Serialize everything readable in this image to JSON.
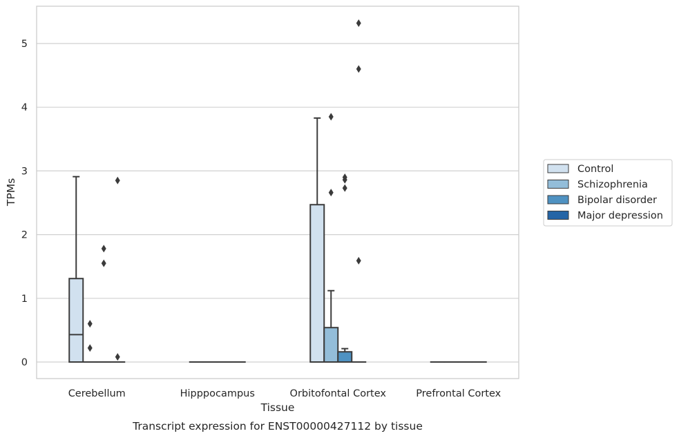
{
  "chart_data": {
    "type": "box",
    "title": "",
    "xlabel": "Tissue",
    "ylabel": "TPMs",
    "caption": "Transcript expression for ENST00000427112 by tissue",
    "ylim": [
      -0.25,
      5.6
    ],
    "y_ticks": [
      0,
      1,
      2,
      3,
      4,
      5
    ],
    "grid": true,
    "legend_position": "right",
    "categories": [
      "Cerebellum",
      "Hipppocampus",
      "Orbitofontal Cortex",
      "Prefrontal Cortex"
    ],
    "series": [
      {
        "name": "Control",
        "color": "#d1e1ef"
      },
      {
        "name": "Schizophrenia",
        "color": "#93bdd9"
      },
      {
        "name": "Bipolar disorder",
        "color": "#4f92c2"
      },
      {
        "name": "Major depression",
        "color": "#2565a6"
      }
    ],
    "boxes": [
      {
        "category": 0,
        "series": 0,
        "q1": 0,
        "median": 0.43,
        "q3": 1.31,
        "whisker_low": 0,
        "whisker_high": 2.91,
        "outliers": []
      },
      {
        "category": 0,
        "series": 1,
        "q1": 0,
        "median": 0,
        "q3": 0,
        "whisker_low": 0,
        "whisker_high": 0,
        "outliers": [
          0.6,
          0.22
        ]
      },
      {
        "category": 0,
        "series": 2,
        "q1": 0,
        "median": 0,
        "q3": 0,
        "whisker_low": 0,
        "whisker_high": 0,
        "outliers": [
          1.78,
          1.55
        ]
      },
      {
        "category": 0,
        "series": 3,
        "q1": 0,
        "median": 0,
        "q3": 0,
        "whisker_low": 0,
        "whisker_high": 0,
        "outliers": [
          2.85,
          0.08
        ]
      },
      {
        "category": 1,
        "series": 0,
        "q1": 0,
        "median": 0,
        "q3": 0,
        "whisker_low": 0,
        "whisker_high": 0,
        "outliers": []
      },
      {
        "category": 1,
        "series": 1,
        "q1": 0,
        "median": 0,
        "q3": 0,
        "whisker_low": 0,
        "whisker_high": 0,
        "outliers": []
      },
      {
        "category": 1,
        "series": 2,
        "q1": 0,
        "median": 0,
        "q3": 0,
        "whisker_low": 0,
        "whisker_high": 0,
        "outliers": []
      },
      {
        "category": 1,
        "series": 3,
        "q1": 0,
        "median": 0,
        "q3": 0,
        "whisker_low": 0,
        "whisker_high": 0,
        "outliers": []
      },
      {
        "category": 2,
        "series": 0,
        "q1": 0,
        "median": 0,
        "q3": 2.47,
        "whisker_low": 0,
        "whisker_high": 3.83,
        "outliers": []
      },
      {
        "category": 2,
        "series": 1,
        "q1": 0,
        "median": 0,
        "q3": 0.54,
        "whisker_low": 0,
        "whisker_high": 1.12,
        "outliers": [
          3.85,
          2.66
        ]
      },
      {
        "category": 2,
        "series": 2,
        "q1": 0,
        "median": 0,
        "q3": 0.16,
        "whisker_low": 0,
        "whisker_high": 0.21,
        "outliers": [
          2.9,
          2.86,
          2.73
        ]
      },
      {
        "category": 2,
        "series": 3,
        "q1": 0,
        "median": 0,
        "q3": 0,
        "whisker_low": 0,
        "whisker_high": 0,
        "outliers": [
          5.32,
          4.6,
          1.59
        ]
      },
      {
        "category": 3,
        "series": 0,
        "q1": 0,
        "median": 0,
        "q3": 0,
        "whisker_low": 0,
        "whisker_high": 0,
        "outliers": []
      },
      {
        "category": 3,
        "series": 1,
        "q1": 0,
        "median": 0,
        "q3": 0,
        "whisker_low": 0,
        "whisker_high": 0,
        "outliers": []
      },
      {
        "category": 3,
        "series": 2,
        "q1": 0,
        "median": 0,
        "q3": 0,
        "whisker_low": 0,
        "whisker_high": 0,
        "outliers": []
      },
      {
        "category": 3,
        "series": 3,
        "q1": 0,
        "median": 0,
        "q3": 0,
        "whisker_low": 0,
        "whisker_high": 0,
        "outliers": []
      }
    ]
  },
  "style": {
    "line_color": "#3b3b3b",
    "grid_color": "#d0d0d0",
    "frame_color": "#cccccc",
    "background": "#ffffff"
  }
}
